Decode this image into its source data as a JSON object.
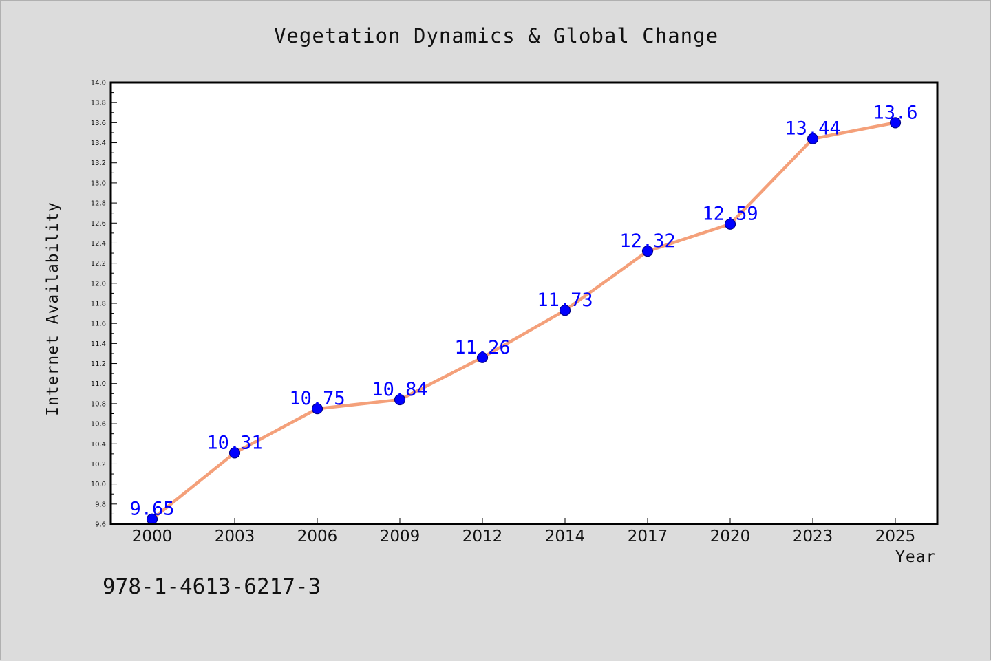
{
  "chart_data": {
    "type": "line",
    "title": "Vegetation Dynamics & Global Change",
    "xlabel": "Year",
    "ylabel": "Internet Availability",
    "categories": [
      "2000",
      "2003",
      "2006",
      "2009",
      "2012",
      "2014",
      "2017",
      "2020",
      "2023",
      "2025"
    ],
    "series": [
      {
        "values": [
          9.65,
          10.31,
          10.75,
          10.84,
          11.26,
          11.73,
          12.32,
          12.59,
          13.44,
          13.6
        ],
        "data_labels": [
          "9.65",
          "10.31",
          "10.75",
          "10.84",
          "11.26",
          "11.73",
          "12.32",
          "12.59",
          "13.44",
          "13.6"
        ]
      }
    ],
    "ylim": [
      9.6,
      14.0
    ],
    "yticks": [
      "9.6",
      "9.8",
      "10.0",
      "10.2",
      "10.4",
      "10.6",
      "10.8",
      "11.0",
      "11.2",
      "11.4",
      "11.6",
      "11.8",
      "12.0",
      "12.2",
      "12.4",
      "12.6",
      "12.8",
      "13.0",
      "13.2",
      "13.4",
      "13.6",
      "13.8",
      "14.0"
    ],
    "grid": false,
    "legend": "none",
    "colors": {
      "line": "#f4a07a",
      "marker_fill": "#0000ff",
      "marker_stroke": "#00008b",
      "data_label": "#0000ff",
      "plot_background": "#ffffff",
      "page_background": "#dcdcdc"
    }
  },
  "footer": {
    "caption": "978-1-4613-6217-3"
  }
}
